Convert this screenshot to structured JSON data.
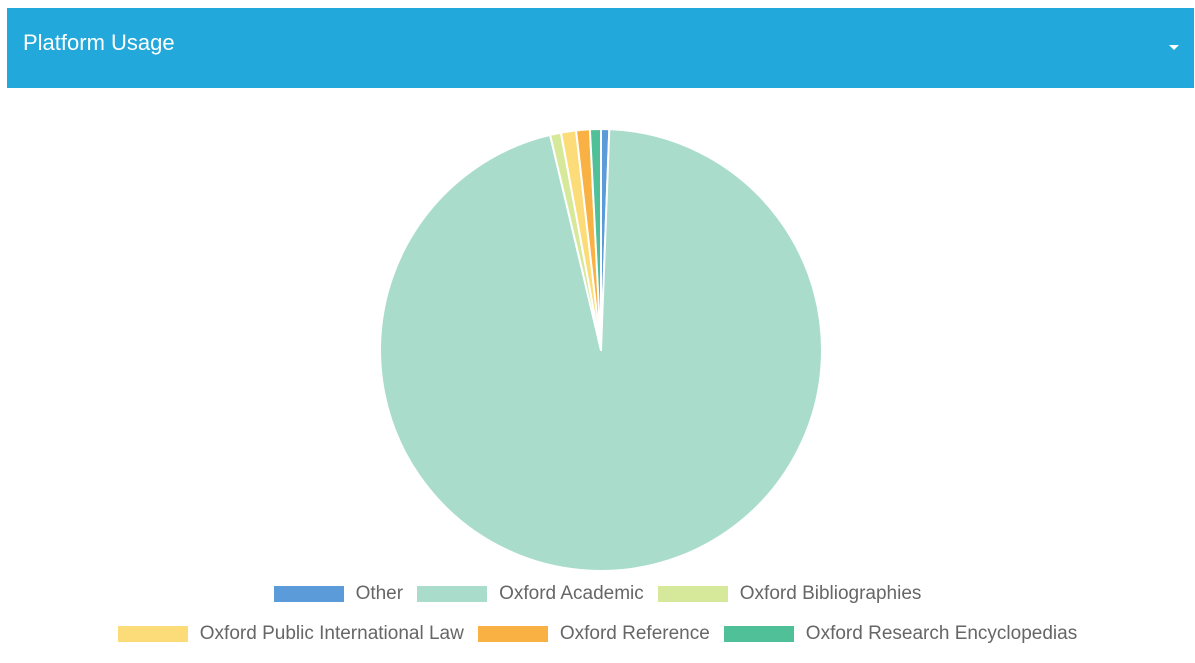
{
  "panel": {
    "title": "Platform Usage",
    "toggle_icon": "chevron-down-icon",
    "header_color": "#22a8da"
  },
  "chart_data": {
    "type": "pie",
    "title": "",
    "start_angle_deg": 0,
    "direction": "clockwise-from-top",
    "slices": [
      {
        "label": "Other",
        "value": 0.6,
        "color": "#5b9bd9"
      },
      {
        "label": "Oxford Academic",
        "value": 95.7,
        "color": "#a9dccb"
      },
      {
        "label": "Oxford Bibliographies",
        "value": 0.8,
        "color": "#d6e99b"
      },
      {
        "label": "Oxford Public International Law",
        "value": 1.1,
        "color": "#fbdc78"
      },
      {
        "label": "Oxford Reference",
        "value": 1.0,
        "color": "#f9b143"
      },
      {
        "label": "Oxford Research Encyclopedias",
        "value": 0.8,
        "color": "#4fc098"
      }
    ],
    "legend": {
      "position": "bottom"
    }
  }
}
